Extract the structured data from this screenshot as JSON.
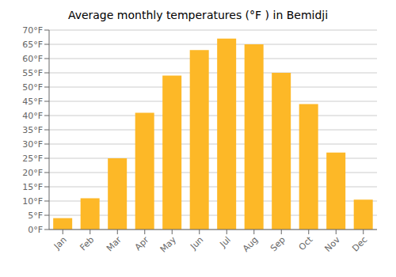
{
  "chart_data": {
    "type": "bar",
    "title": "Average monthly temperatures (°F ) in Bemidji",
    "categories": [
      "Jan",
      "Feb",
      "Mar",
      "Apr",
      "May",
      "Jun",
      "Jul",
      "Aug",
      "Sep",
      "Oct",
      "Nov",
      "Dec"
    ],
    "values": [
      4,
      11,
      25,
      41,
      54,
      63,
      67,
      65,
      55,
      44,
      27,
      10.5
    ],
    "color": "#FDB827",
    "ylim": [
      0,
      70
    ],
    "yticks": [
      {
        "value": 0,
        "label": "0°F"
      },
      {
        "value": 5,
        "label": "5°F"
      },
      {
        "value": 10,
        "label": "10°F"
      },
      {
        "value": 15,
        "label": "15°F"
      },
      {
        "value": 20,
        "label": "20°F"
      },
      {
        "value": 25,
        "label": "25°F"
      },
      {
        "value": 30,
        "label": "30°F"
      },
      {
        "value": 35,
        "label": "35°F"
      },
      {
        "value": 40,
        "label": "40°F"
      },
      {
        "value": 45,
        "label": "45°F"
      },
      {
        "value": 50,
        "label": "50°F"
      },
      {
        "value": 55,
        "label": "55°F"
      },
      {
        "value": 60,
        "label": "60°F"
      },
      {
        "value": 65,
        "label": "65°F"
      },
      {
        "value": 70,
        "label": "70°F"
      }
    ],
    "grid": true
  }
}
